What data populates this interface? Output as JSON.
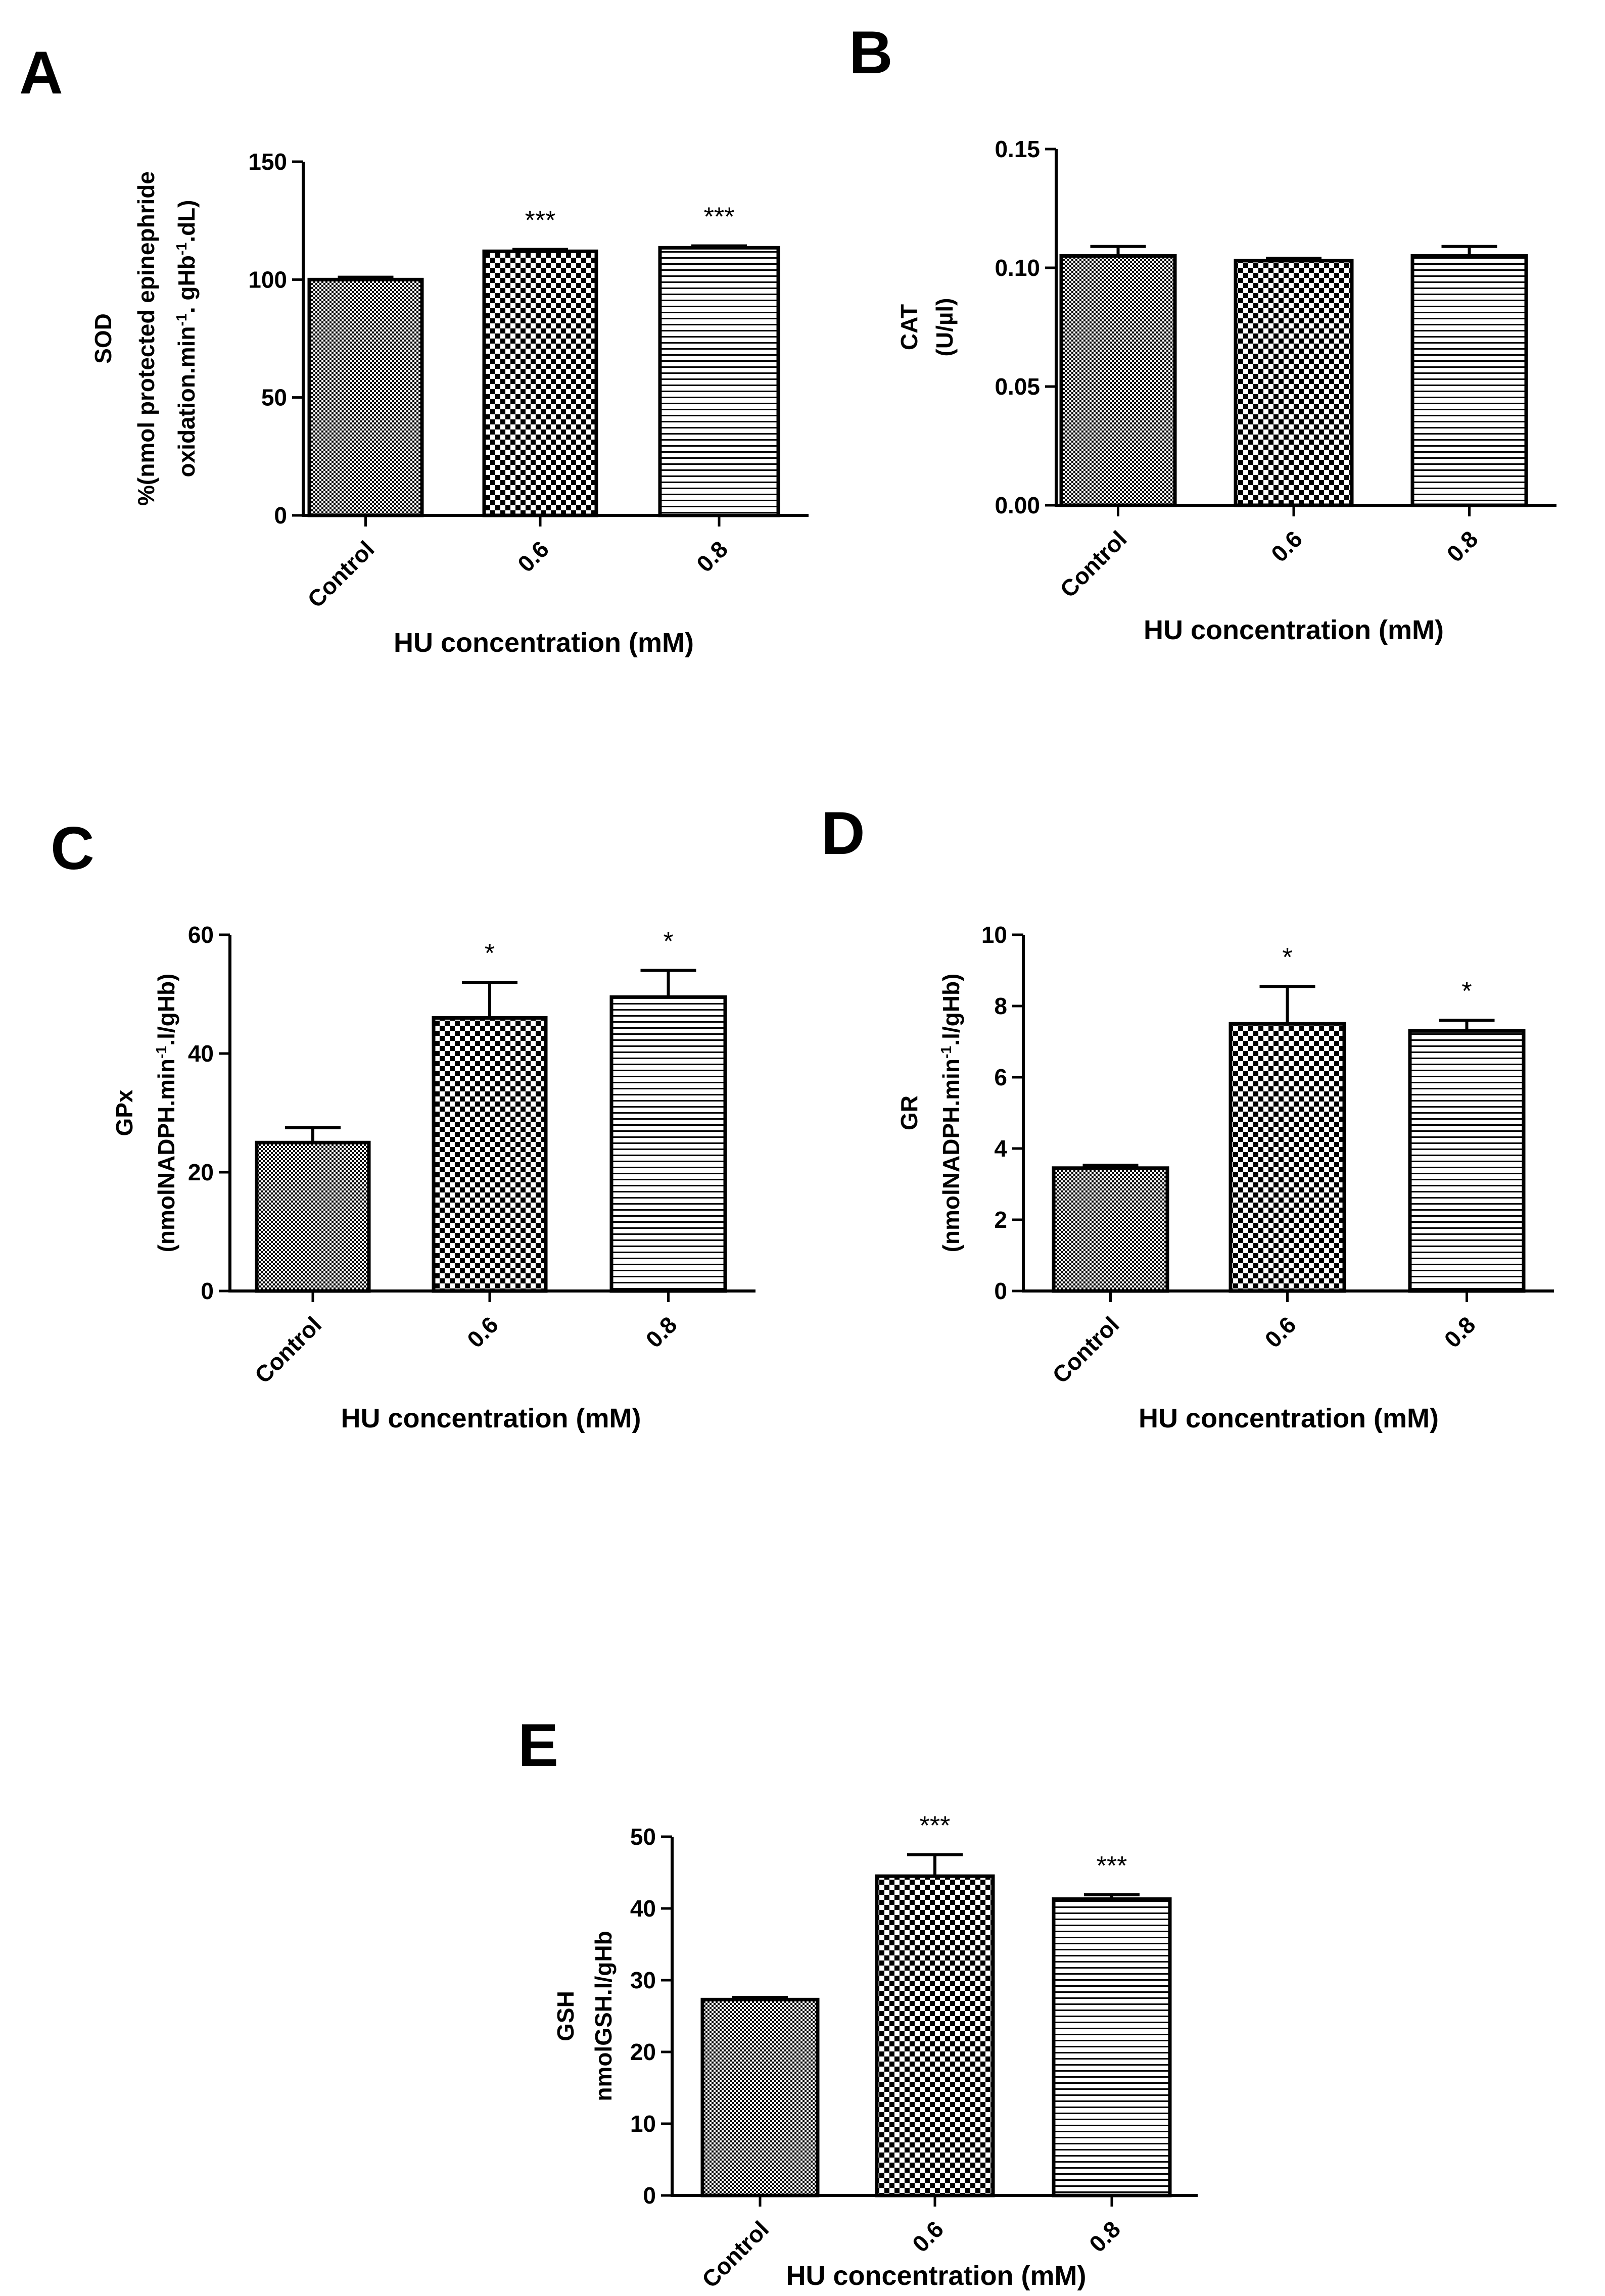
{
  "pattern_colors": {
    "ink": "#000000",
    "background": "#ffffff"
  },
  "pattern_names": [
    "fine-checker-pattern",
    "coarse-checker-pattern",
    "horizontal-stripe-pattern"
  ],
  "chart_data": [
    {
      "id": "A",
      "panel_label": "A",
      "type": "bar",
      "categories": [
        "Control",
        "0.6",
        "0.8"
      ],
      "values": [
        100,
        112,
        113.5
      ],
      "errors": [
        1,
        0.8,
        0.8
      ],
      "annotations": [
        "",
        "***",
        "***"
      ],
      "ylim": [
        0,
        150
      ],
      "yticks": [
        0,
        50,
        100,
        150
      ],
      "ylabel_lines": [
        "SOD",
        "%(nmol protected epinephride",
        "oxidation.min-1. gHb-1.dL)"
      ],
      "xlabel": "HU concentration (mM)"
    },
    {
      "id": "B",
      "panel_label": "B",
      "type": "bar",
      "categories": [
        "Control",
        "0.6",
        "0.8"
      ],
      "values": [
        0.105,
        0.103,
        0.105
      ],
      "errors": [
        0.004,
        0.001,
        0.004
      ],
      "annotations": [
        "",
        "",
        ""
      ],
      "ylim": [
        0,
        0.15
      ],
      "yticks": [
        "0.00",
        "0.05",
        "0.10",
        "0.15"
      ],
      "ylabel_lines": [
        "CAT",
        "(U/µl)"
      ],
      "xlabel": "HU concentration (mM)"
    },
    {
      "id": "C",
      "panel_label": "C",
      "type": "bar",
      "categories": [
        "Control",
        "0.6",
        "0.8"
      ],
      "values": [
        25,
        46,
        49.5
      ],
      "errors": [
        2.5,
        6,
        4.5
      ],
      "annotations": [
        "",
        "*",
        "*"
      ],
      "ylim": [
        0,
        60
      ],
      "yticks": [
        0,
        20,
        40,
        60
      ],
      "ylabel_lines": [
        "GPx",
        "(nmolNADPH.min-1.l/gHb)"
      ],
      "xlabel": "HU concentration (mM)"
    },
    {
      "id": "D",
      "panel_label": "D",
      "type": "bar",
      "categories": [
        "Control",
        "0.6",
        "0.8"
      ],
      "values": [
        3.45,
        7.5,
        7.3
      ],
      "errors": [
        0.08,
        1.05,
        0.3
      ],
      "annotations": [
        "",
        "*",
        "*"
      ],
      "ylim": [
        0,
        10
      ],
      "yticks": [
        0,
        2,
        4,
        6,
        8,
        10
      ],
      "ylabel_lines": [
        "GR",
        "(nmolNADPH.min-1.l/gHb)"
      ],
      "xlabel": "HU concentration (mM)"
    },
    {
      "id": "E",
      "panel_label": "E",
      "type": "bar",
      "categories": [
        "Control",
        "0.6",
        "0.8"
      ],
      "values": [
        27.3,
        44.5,
        41.3
      ],
      "errors": [
        0.3,
        3,
        0.6
      ],
      "annotations": [
        "",
        "***",
        "***"
      ],
      "ylim": [
        0,
        50
      ],
      "yticks": [
        0,
        10,
        20,
        30,
        40,
        50
      ],
      "ylabel_lines": [
        "GSH",
        "nmolGSH.l/gHb"
      ],
      "xlabel": "HU concentration (mM)"
    }
  ]
}
